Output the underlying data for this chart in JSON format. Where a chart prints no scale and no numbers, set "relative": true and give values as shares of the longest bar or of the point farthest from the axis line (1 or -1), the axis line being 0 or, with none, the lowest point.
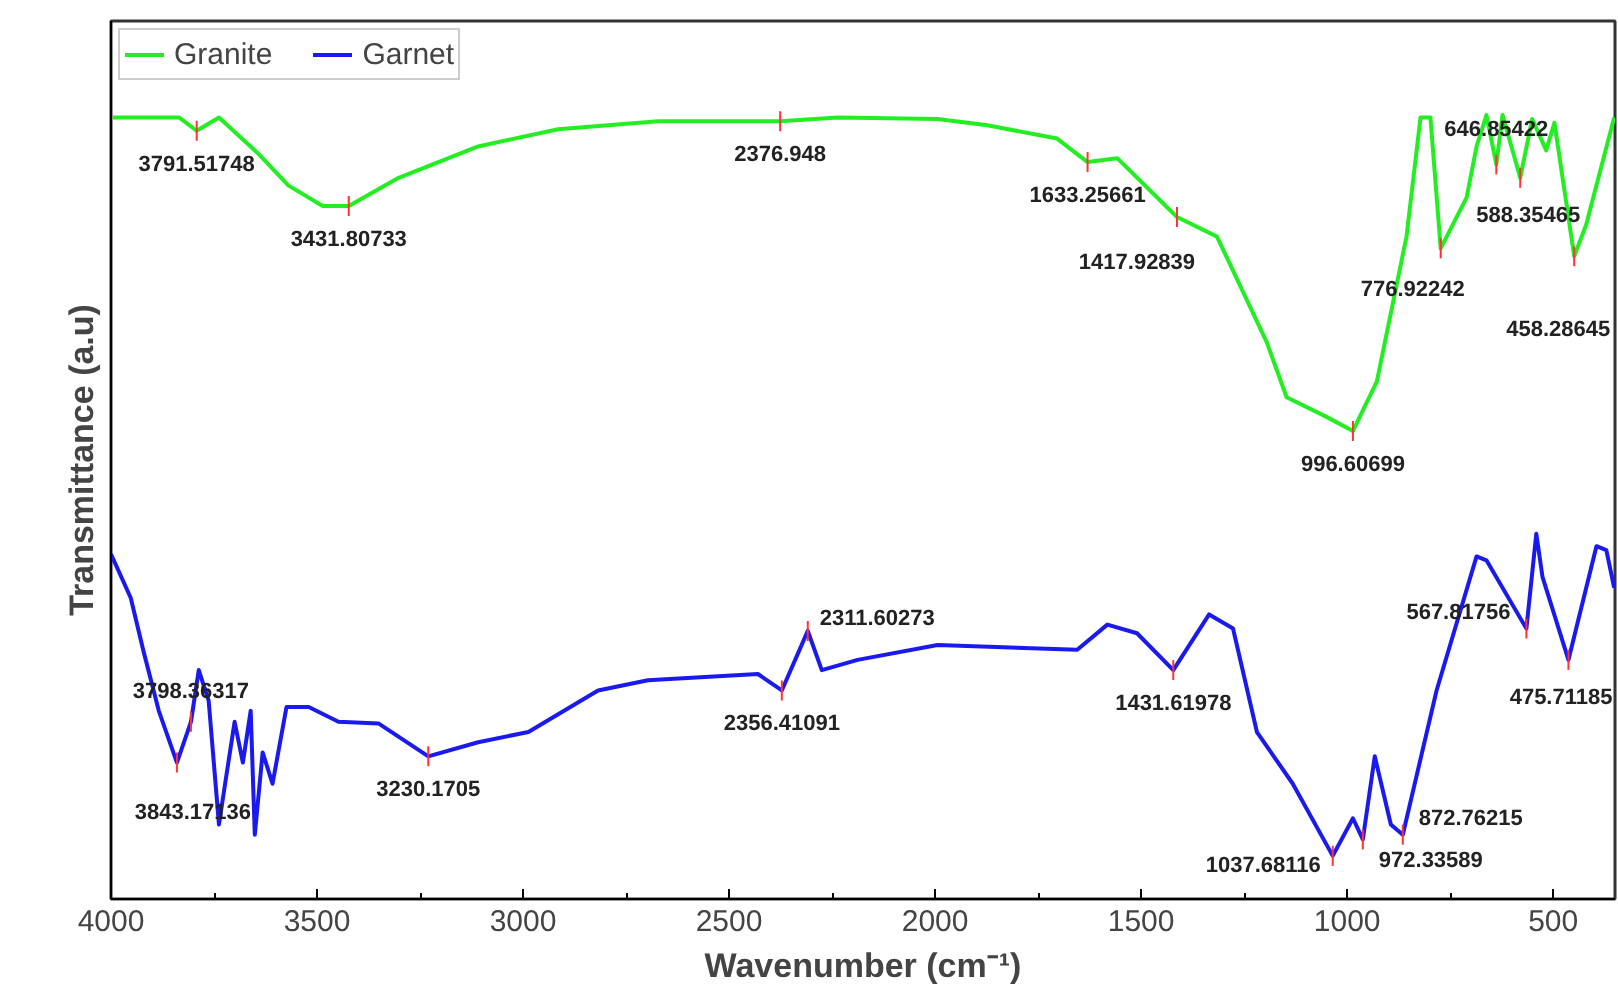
{
  "chart_data": {
    "type": "line",
    "relative": true,
    "xlabel": "Wavenumber (cm⁻¹)",
    "ylabel": "Transmittance (a.u)",
    "xlim": [
      4000,
      350
    ],
    "xticks": [
      4000,
      3500,
      3000,
      2500,
      2000,
      1500,
      1000,
      500
    ],
    "grid": false,
    "legend": "top left",
    "series": [
      {
        "name": "Granite",
        "color": "#22ee22",
        "x": [
          3995,
          3835,
          3792,
          3738,
          3641,
          3569,
          3486,
          3423,
          3302,
          3109,
          2915,
          2672,
          2376,
          2236,
          1994,
          1873,
          1704,
          1630,
          1558,
          1413,
          1316,
          1195,
          1147,
          1050,
          986,
          928,
          856,
          822,
          798,
          773,
          710,
          686,
          662,
          638,
          623,
          580,
          551,
          517,
          497,
          449,
          420,
          352
        ],
        "values": [
          0.997,
          0.997,
          0.98,
          0.997,
          0.95,
          0.91,
          0.884,
          0.884,
          0.92,
          0.96,
          0.982,
          0.992,
          0.992,
          0.997,
          0.995,
          0.987,
          0.97,
          0.94,
          0.945,
          0.87,
          0.845,
          0.71,
          0.64,
          0.615,
          0.597,
          0.66,
          0.845,
          0.997,
          0.997,
          0.83,
          0.895,
          0.96,
          1.0,
          0.937,
          1.0,
          0.92,
          0.995,
          0.955,
          0.99,
          0.82,
          0.86,
          0.997
        ]
      },
      {
        "name": "Garnet",
        "color": "#1a1aee",
        "x": [
          4000,
          3952,
          3922,
          3884,
          3840,
          3806,
          3787,
          3763,
          3738,
          3719,
          3700,
          3680,
          3661,
          3651,
          3632,
          3608,
          3574,
          3520,
          3448,
          3351,
          3230,
          3109,
          2987,
          2818,
          2697,
          2430,
          2372,
          2309,
          2275,
          2188,
          1994,
          1655,
          1582,
          1510,
          1422,
          1335,
          1277,
          1219,
          1132,
          1035,
          986,
          962,
          933,
          894,
          865,
          783,
          686,
          662,
          565,
          541,
          526,
          463,
          395,
          371,
          352
        ],
        "values": [
          0.44,
          0.384,
          0.318,
          0.24,
          0.174,
          0.226,
          0.292,
          0.253,
          0.095,
          0.161,
          0.226,
          0.174,
          0.24,
          0.082,
          0.187,
          0.147,
          0.245,
          0.245,
          0.226,
          0.224,
          0.182,
          0.2,
          0.213,
          0.266,
          0.279,
          0.287,
          0.266,
          0.342,
          0.292,
          0.305,
          0.324,
          0.318,
          0.35,
          0.339,
          0.292,
          0.363,
          0.345,
          0.213,
          0.147,
          0.055,
          0.103,
          0.076,
          0.182,
          0.095,
          0.082,
          0.266,
          0.437,
          0.432,
          0.345,
          0.466,
          0.411,
          0.305,
          0.45,
          0.445,
          0.397
        ]
      }
    ],
    "annotations": [
      {
        "text": "3791.51748",
        "x": 3792,
        "y": 0.98
      },
      {
        "text": "3431.80733",
        "x": 3423,
        "y": 0.884
      },
      {
        "text": "2376.948",
        "x": 2376,
        "y": 0.992
      },
      {
        "text": "1633.25661",
        "x": 1630,
        "y": 0.94
      },
      {
        "text": "1417.92839",
        "x": 1413,
        "y": 0.87
      },
      {
        "text": "996.60699",
        "x": 986,
        "y": 0.597
      },
      {
        "text": "776.92242",
        "x": 773,
        "y": 0.83
      },
      {
        "text": "646.85422",
        "x": 638,
        "y": 0.937
      },
      {
        "text": "588.35465",
        "x": 580,
        "y": 0.92
      },
      {
        "text": "458.28645",
        "x": 449,
        "y": 0.82
      },
      {
        "text": "3843.17136",
        "x": 3840,
        "y": 0.174
      },
      {
        "text": "3798.36317",
        "x": 3806,
        "y": 0.226
      },
      {
        "text": "3230.1705",
        "x": 3230,
        "y": 0.182
      },
      {
        "text": "2356.41091",
        "x": 2372,
        "y": 0.266
      },
      {
        "text": "2311.60273",
        "x": 2309,
        "y": 0.342
      },
      {
        "text": "1431.61978",
        "x": 1422,
        "y": 0.292
      },
      {
        "text": "1037.68116",
        "x": 1035,
        "y": 0.055
      },
      {
        "text": "972.33589",
        "x": 962,
        "y": 0.076
      },
      {
        "text": "872.76215",
        "x": 865,
        "y": 0.082
      },
      {
        "text": "567.81756",
        "x": 565,
        "y": 0.345
      },
      {
        "text": "475.71185",
        "x": 463,
        "y": 0.305
      }
    ]
  }
}
